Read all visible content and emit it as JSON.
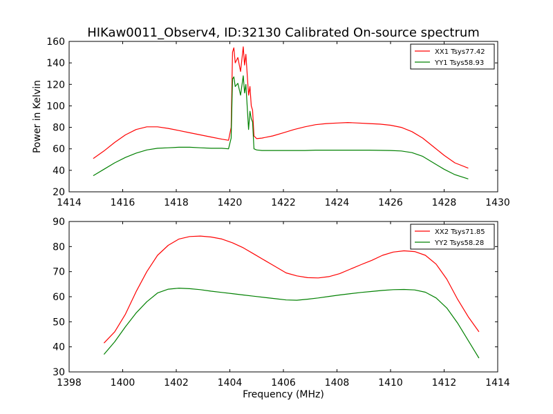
{
  "chart_data": [
    {
      "type": "line",
      "title": "HIKaw0011_Observ4, ID:32130 Calibrated On-source spectrum",
      "xlabel": "",
      "ylabel": "Power in Kelvin",
      "xlim": [
        1414,
        1430
      ],
      "ylim": [
        20,
        160
      ],
      "x_ticks": [
        "1414",
        "1416",
        "1418",
        "1420",
        "1422",
        "1424",
        "1426",
        "1428",
        "1430"
      ],
      "y_ticks": [
        "20",
        "40",
        "60",
        "80",
        "100",
        "120",
        "140",
        "160"
      ],
      "legend_position": "top-right",
      "grid": false,
      "series": [
        {
          "name": "XX1 Tsys77.42",
          "color": "#ff0000",
          "x": [
            1414.9,
            1415.3,
            1415.7,
            1416.1,
            1416.5,
            1416.9,
            1417.3,
            1417.7,
            1418.1,
            1418.5,
            1418.9,
            1419.3,
            1419.7,
            1419.95,
            1420.05,
            1420.1,
            1420.15,
            1420.2,
            1420.3,
            1420.4,
            1420.5,
            1420.55,
            1420.6,
            1420.7,
            1420.75,
            1420.8,
            1420.85,
            1420.9,
            1421.0,
            1421.2,
            1421.6,
            1422.0,
            1422.4,
            1422.8,
            1423.2,
            1423.6,
            1424.0,
            1424.4,
            1424.8,
            1425.2,
            1425.6,
            1426.0,
            1426.4,
            1426.8,
            1427.2,
            1427.6,
            1428.0,
            1428.4,
            1428.9
          ],
          "y": [
            51,
            58,
            66,
            73,
            78,
            80.5,
            80.5,
            79,
            77,
            75,
            73,
            71,
            69,
            68,
            80,
            150,
            154,
            140,
            145,
            132,
            155,
            138,
            148,
            110,
            118,
            100,
            96,
            72,
            69.5,
            70,
            72,
            75,
            78,
            80.5,
            82.5,
            83.5,
            84,
            84.5,
            84,
            83.5,
            83,
            82,
            80,
            76,
            70,
            62,
            54,
            47,
            42
          ]
        },
        {
          "name": "YY1 Tsys58.93",
          "color": "#008000",
          "x": [
            1414.9,
            1415.3,
            1415.7,
            1416.1,
            1416.5,
            1416.9,
            1417.3,
            1417.7,
            1418.1,
            1418.5,
            1418.9,
            1419.3,
            1419.7,
            1419.95,
            1420.05,
            1420.1,
            1420.15,
            1420.2,
            1420.3,
            1420.4,
            1420.5,
            1420.55,
            1420.6,
            1420.7,
            1420.75,
            1420.8,
            1420.85,
            1420.9,
            1421.0,
            1421.2,
            1421.6,
            1422.0,
            1422.4,
            1422.8,
            1423.2,
            1423.6,
            1424.0,
            1424.4,
            1424.8,
            1425.2,
            1425.6,
            1426.0,
            1426.4,
            1426.8,
            1427.2,
            1427.6,
            1428.0,
            1428.4,
            1428.9
          ],
          "y": [
            35,
            41,
            47,
            52,
            56,
            59,
            60.5,
            61,
            61.5,
            61.5,
            61,
            60.5,
            60.5,
            60,
            70,
            125,
            127,
            118,
            121,
            110,
            128,
            112,
            120,
            78,
            95,
            88,
            85,
            60,
            59,
            58.5,
            58.5,
            58.5,
            58.5,
            58.5,
            58.8,
            58.8,
            58.8,
            58.8,
            58.8,
            58.8,
            58.6,
            58.5,
            58,
            56.5,
            53,
            47,
            41,
            36,
            32
          ]
        }
      ]
    },
    {
      "type": "line",
      "title": "",
      "xlabel": "Frequency (MHz)",
      "ylabel": "",
      "xlim": [
        1398,
        1414
      ],
      "ylim": [
        30,
        90
      ],
      "x_ticks": [
        "1398",
        "1400",
        "1402",
        "1404",
        "1406",
        "1408",
        "1410",
        "1412",
        "1414"
      ],
      "y_ticks": [
        "30",
        "40",
        "50",
        "60",
        "70",
        "80",
        "90"
      ],
      "legend_position": "top-right",
      "grid": false,
      "series": [
        {
          "name": "XX2 Tsys71.85",
          "color": "#ff0000",
          "x": [
            1399.3,
            1399.7,
            1400.1,
            1400.5,
            1400.9,
            1401.3,
            1401.7,
            1402.1,
            1402.5,
            1402.9,
            1403.3,
            1403.7,
            1404.1,
            1404.5,
            1404.9,
            1405.3,
            1405.7,
            1406.1,
            1406.5,
            1406.9,
            1407.3,
            1407.7,
            1408.1,
            1408.5,
            1408.9,
            1409.3,
            1409.7,
            1410.1,
            1410.5,
            1410.9,
            1411.3,
            1411.7,
            1412.1,
            1412.5,
            1412.9,
            1413.3
          ],
          "y": [
            41.5,
            46,
            53,
            62,
            70,
            76.5,
            80.5,
            83,
            84,
            84.2,
            83.8,
            83,
            81.5,
            79.5,
            77,
            74.5,
            72,
            69.5,
            68.3,
            67.6,
            67.5,
            68,
            69.2,
            71,
            72.8,
            74.5,
            76.5,
            77.8,
            78.3,
            78,
            76.5,
            73,
            67,
            59,
            52,
            46
          ]
        },
        {
          "name": "YY2 Tsys58.28",
          "color": "#008000",
          "x": [
            1399.3,
            1399.7,
            1400.1,
            1400.5,
            1400.9,
            1401.3,
            1401.7,
            1402.1,
            1402.5,
            1402.9,
            1403.3,
            1403.7,
            1404.1,
            1404.5,
            1404.9,
            1405.3,
            1405.7,
            1406.1,
            1406.5,
            1406.9,
            1407.3,
            1407.7,
            1408.1,
            1408.5,
            1408.9,
            1409.3,
            1409.7,
            1410.1,
            1410.5,
            1410.9,
            1411.3,
            1411.7,
            1412.1,
            1412.5,
            1412.9,
            1413.3
          ],
          "y": [
            37,
            42,
            48,
            53.5,
            58,
            61.5,
            63,
            63.4,
            63.2,
            62.8,
            62.2,
            61.7,
            61.2,
            60.7,
            60.2,
            59.7,
            59.2,
            58.7,
            58.6,
            59,
            59.5,
            60.1,
            60.7,
            61.2,
            61.7,
            62.1,
            62.5,
            62.8,
            62.9,
            62.7,
            61.8,
            59.5,
            55.5,
            49.5,
            42.5,
            35.5
          ]
        }
      ]
    }
  ]
}
